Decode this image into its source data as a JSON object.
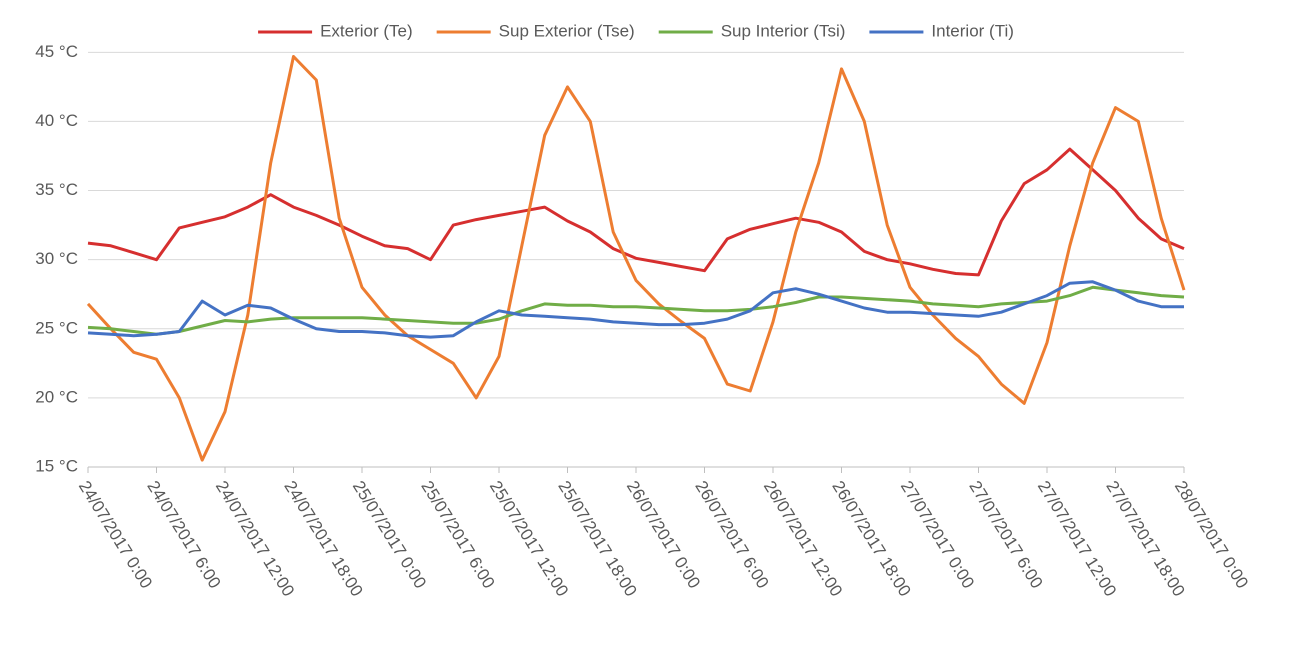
{
  "chart_data": {
    "type": "line",
    "categories": [
      "24/07/2017 0:00",
      null,
      null,
      "24/07/2017 6:00",
      null,
      null,
      "24/07/2017 12:00",
      null,
      null,
      "24/07/2017 18:00",
      null,
      null,
      "25/07/2017 0:00",
      null,
      null,
      "25/07/2017 6:00",
      null,
      null,
      "25/07/2017 12:00",
      null,
      null,
      "25/07/2017 18:00",
      null,
      null,
      "26/07/2017 0:00",
      null,
      null,
      "26/07/2017 6:00",
      null,
      null,
      "26/07/2017 12:00",
      null,
      null,
      "26/07/2017 18:00",
      null,
      null,
      "27/07/2017 0:00",
      null,
      null,
      "27/07/2017 6:00",
      null,
      null,
      "27/07/2017 12:00",
      null,
      null,
      "27/07/2017 18:00",
      null,
      null,
      "28/07/2017 0:00"
    ],
    "series": [
      {
        "name": "Exterior (Te)",
        "color": "#d62f2f",
        "values": [
          31.2,
          31,
          30.5,
          30,
          32.3,
          32.7,
          33.1,
          33.8,
          34.7,
          33.8,
          33.2,
          32.5,
          31.7,
          31,
          30.8,
          30,
          32.5,
          32.9,
          33.2,
          33.5,
          33.8,
          32.8,
          32,
          30.8,
          30.1,
          29.8,
          29.5,
          29.2,
          31.5,
          32.2,
          32.6,
          33,
          32.7,
          32,
          30.6,
          30,
          29.7,
          29.3,
          29,
          28.9,
          32.8,
          35.5,
          36.5,
          38,
          36.5,
          35,
          33,
          31.5,
          30.8
        ]
      },
      {
        "name": "Sup Exterior (Tse)",
        "color": "#ed7d31",
        "values": [
          26.8,
          25,
          23.3,
          22.8,
          20,
          15.5,
          19,
          26,
          37,
          44.7,
          43,
          33,
          28,
          26,
          24.5,
          23.5,
          22.5,
          20,
          23,
          31,
          39,
          42.5,
          40,
          32,
          28.5,
          26.8,
          25.5,
          24.3,
          21,
          20.5,
          25.5,
          32,
          37,
          43.8,
          40,
          32.5,
          28,
          26,
          24.3,
          23,
          21,
          19.6,
          24,
          31,
          37,
          41,
          40,
          33,
          27.8
        ]
      },
      {
        "name": "Sup Interior (Tsi)",
        "color": "#70ad47",
        "values": [
          25.1,
          25,
          24.8,
          24.6,
          24.8,
          25.2,
          25.6,
          25.5,
          25.7,
          25.8,
          25.8,
          25.8,
          25.8,
          25.7,
          25.6,
          25.5,
          25.4,
          25.4,
          25.7,
          26.3,
          26.8,
          26.7,
          26.7,
          26.6,
          26.6,
          26.5,
          26.4,
          26.3,
          26.3,
          26.4,
          26.6,
          26.9,
          27.3,
          27.3,
          27.2,
          27.1,
          27,
          26.8,
          26.7,
          26.6,
          26.8,
          26.9,
          27,
          27.4,
          28,
          27.8,
          27.6,
          27.4,
          27.3
        ]
      },
      {
        "name": "Interior (Ti)",
        "color": "#4472c4",
        "values": [
          24.7,
          24.6,
          24.5,
          24.6,
          24.8,
          27,
          26,
          26.7,
          26.5,
          25.7,
          25,
          24.8,
          24.8,
          24.7,
          24.5,
          24.4,
          24.5,
          25.5,
          26.3,
          26,
          25.9,
          25.8,
          25.7,
          25.5,
          25.4,
          25.3,
          25.3,
          25.4,
          25.7,
          26.3,
          27.6,
          27.9,
          27.5,
          27,
          26.5,
          26.2,
          26.2,
          26.1,
          26,
          25.9,
          26.2,
          26.8,
          27.4,
          28.3,
          28.4,
          27.8,
          27,
          26.6,
          26.6
        ]
      }
    ],
    "ylim": [
      15,
      47.7
    ],
    "yticks": [
      {
        "value": 15,
        "label": "15 °C"
      },
      {
        "value": 20,
        "label": "20 °C"
      },
      {
        "value": 25,
        "label": "25 °C"
      },
      {
        "value": 30,
        "label": "30 °C"
      },
      {
        "value": 35,
        "label": "35 °C"
      },
      {
        "value": 40,
        "label": "40 °C"
      },
      {
        "value": 45,
        "label": "45 °C"
      }
    ],
    "grid": true,
    "legend": "top"
  }
}
